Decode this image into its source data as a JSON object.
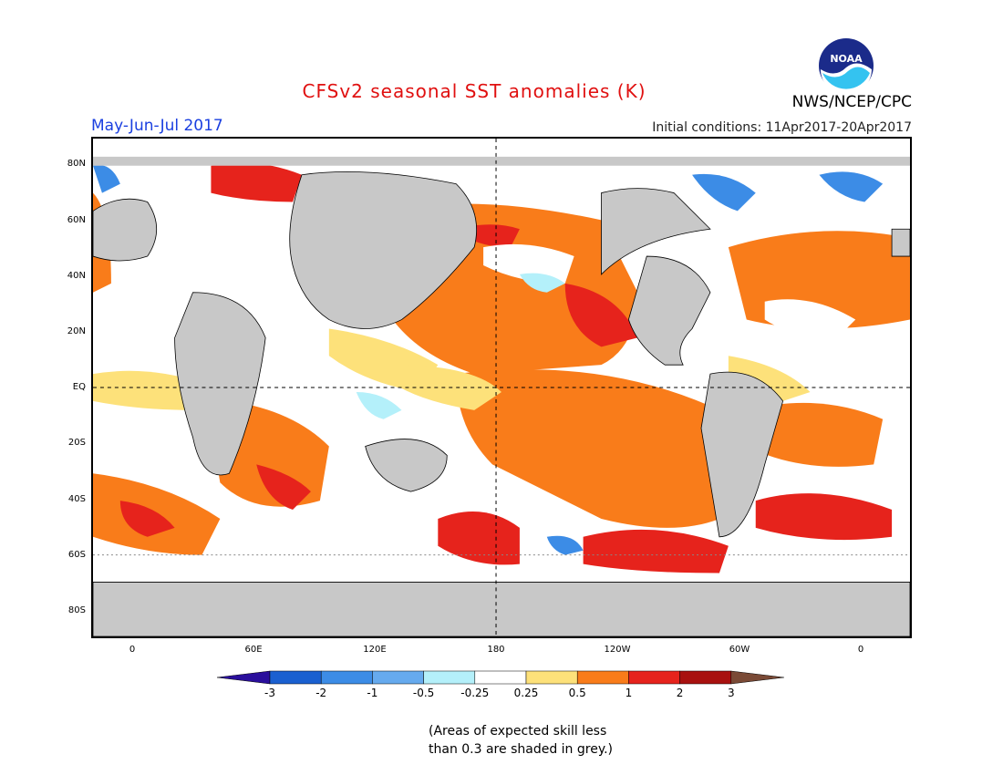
{
  "header": {
    "title": "CFSv2 seasonal SST anomalies (K)",
    "period": "May-Jun-Jul 2017",
    "initial_conditions": "Initial conditions: 11Apr2017-20Apr2017",
    "agency": "NWS/NCEP/CPC",
    "logo_text": "NOAA"
  },
  "axes": {
    "lat_labels": [
      "80N",
      "60N",
      "40N",
      "20N",
      "EQ",
      "20S",
      "40S",
      "60S",
      "80S"
    ],
    "lon_labels": [
      "0",
      "60E",
      "120E",
      "180",
      "120W",
      "60W",
      "0"
    ]
  },
  "colorbar": {
    "ticks": [
      "-3",
      "-2",
      "-1",
      "-0.5",
      "-0.25",
      "0.25",
      "0.5",
      "1",
      "2",
      "3"
    ],
    "colors": [
      "#2a0f9c",
      "#1a60d0",
      "#3c8ce6",
      "#66aaee",
      "#b4f0fa",
      "#ffffff",
      "#fde17a",
      "#f97c1a",
      "#e6231c",
      "#a8110f",
      "#7a4a36"
    ]
  },
  "colors": {
    "land": "#c8c8c8",
    "grey_skill_mask": "#c4c4c4",
    "title": "#e01010",
    "period": "#1a3fe0"
  },
  "note": {
    "line1": "(Areas of expected skill less",
    "line2": "than 0.3 are shaded in grey.)"
  }
}
